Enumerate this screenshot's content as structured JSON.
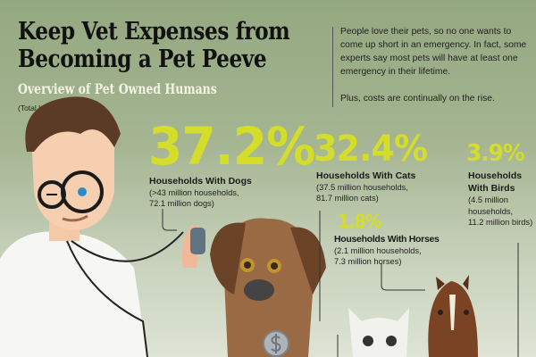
{
  "header": {
    "title_line1": "Keep Vet Expenses from",
    "title_line2": "Becoming a Pet Peeve",
    "subtitle": "Overview of Pet Owned Humans",
    "note": "(Total U.S. Numbers)"
  },
  "intro": {
    "paragraph1": "People love their pets, so no one wants to come up short in an emergency. In fact, some experts say most pets will have at least one emergency in their lifetime.",
    "paragraph2": "Plus, costs are continually on the rise."
  },
  "stats": [
    {
      "percent": "37.2%",
      "label": "Households With Dogs",
      "detail1": "(>43 million households,",
      "detail2": "72.1 million dogs)"
    },
    {
      "percent": "32.4%",
      "label": "Households With Cats",
      "detail1": "(37.5 million households,",
      "detail2": "81.7 million cats)"
    },
    {
      "percent": "3.9%",
      "label": "Households With Birds",
      "detail1": "(4.5 million households,",
      "detail2": "11.2 million birds)"
    },
    {
      "percent": "1.8%",
      "label": "Households With Horses",
      "detail1": "(2.1 million households,",
      "detail2": "7.3 million horses)"
    }
  ],
  "colors": {
    "accent": "#d5dd2b",
    "background": "#94a880"
  }
}
